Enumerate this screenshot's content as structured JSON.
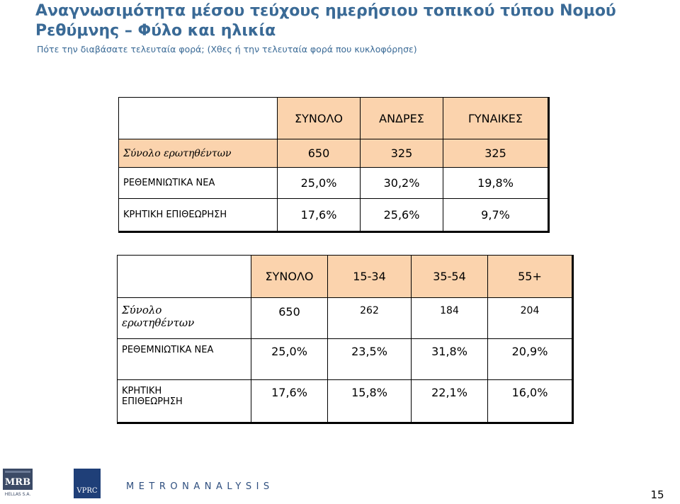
{
  "header": {
    "title_line1": "Αναγνωσιμότητα μέσου τεύχους ημερήσιου τοπικού τύπου Νομού",
    "title_line2": "Ρεθύμνης   – Φύλο και ηλικία",
    "subtitle": "Πότε την διαβάσατε τελευταία φορά; (Χθες ή την τελευταία φορά που κυκλοφόρησε)"
  },
  "table_gender": {
    "headers": [
      "ΣΥΝΟΛΟ",
      "ΑΝΔΡΕΣ",
      "ΓΥΝΑΙΚΕΣ"
    ],
    "rows": [
      {
        "label": "Σύνολο ερωτηθέντων",
        "values": [
          "650",
          "325",
          "325"
        ]
      },
      {
        "label": "ΡΕΘΕΜΝΙΩΤΙΚΑ ΝΕΑ",
        "values": [
          "25,0%",
          "30,2%",
          "19,8%"
        ]
      },
      {
        "label": "ΚΡΗΤΙΚΗ ΕΠΙΘΕΩΡΗΣΗ",
        "values": [
          "17,6%",
          "25,6%",
          "9,7%"
        ]
      }
    ]
  },
  "table_age": {
    "headers": [
      "ΣΥΝΟΛΟ",
      "15-34",
      "35-54",
      "55+"
    ],
    "rows": [
      {
        "label": "Σύνολο ερωτηθέντων",
        "values": [
          "650",
          "262",
          "184",
          "204"
        ]
      },
      {
        "label": "ΡΕΘΕΜΝΙΩΤΙΚΑ ΝΕΑ",
        "values": [
          "25,0%",
          "23,5%",
          "31,8%",
          "20,9%"
        ]
      },
      {
        "label": "ΚΡΗΤΙΚΗ ΕΠΙΘΕΩΡΗΣΗ",
        "values": [
          "17,6%",
          "15,8%",
          "22,1%",
          "16,0%"
        ]
      }
    ]
  },
  "footer": {
    "mrb_text": "MRB",
    "mrb_sub": "HELLAS S.A.",
    "vprc_text": "VPRC",
    "metron_text": "METRONANALYSIS",
    "page_number": "15"
  },
  "colors": {
    "title": "#3a6a96",
    "header_fill": "#fbd3ad",
    "metron": "#2f4f7f"
  }
}
